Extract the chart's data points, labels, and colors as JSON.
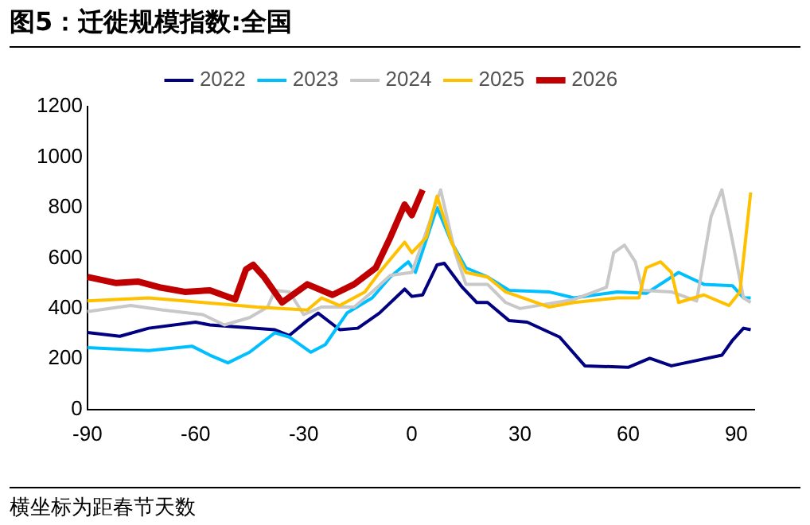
{
  "chart_data": {
    "type": "line",
    "title": "图5：迁徙规模指数:全国",
    "annotations": [
      "横坐标为距春节天数"
    ],
    "xlim": [
      -90,
      95
    ],
    "xticks": [
      -90,
      -60,
      -30,
      0,
      30,
      60,
      90
    ],
    "ylim": [
      0,
      1200
    ],
    "yticks": [
      0,
      200,
      400,
      600,
      800,
      1000,
      1200
    ],
    "grid": false,
    "legend": "top",
    "marker": "none",
    "line_style": "solid",
    "series": [
      {
        "name": "2022",
        "color": "#000080",
        "x": [
          -90,
          -81,
          -73,
          -60,
          -56,
          -38,
          -34,
          -29,
          -26,
          -20,
          -15,
          -9,
          -2,
          0,
          3,
          7,
          9,
          14,
          18,
          21,
          27,
          32,
          41,
          48,
          60,
          66,
          72,
          86,
          89,
          92,
          94
        ],
        "values": [
          305,
          290,
          322,
          346,
          335,
          316,
          293,
          352,
          382,
          316,
          322,
          382,
          477,
          448,
          454,
          573,
          579,
          484,
          424,
          424,
          352,
          346,
          287,
          173,
          167,
          203,
          173,
          215,
          275,
          322,
          316
        ]
      },
      {
        "name": "2023",
        "color": "#00bfff",
        "x": [
          -90,
          -73,
          -61,
          -56,
          -51,
          -45,
          -38,
          -34,
          -28,
          -24,
          -18,
          -11,
          -6,
          -1,
          1,
          7,
          11,
          15,
          21,
          27,
          38,
          45,
          57,
          65,
          74,
          81,
          89,
          92,
          94
        ],
        "values": [
          245,
          233,
          251,
          215,
          185,
          227,
          304,
          287,
          227,
          257,
          382,
          442,
          525,
          585,
          543,
          800,
          663,
          561,
          525,
          472,
          466,
          442,
          466,
          460,
          543,
          496,
          490,
          442,
          442
        ]
      },
      {
        "name": "2024",
        "color": "#c8c8c8",
        "x": [
          -90,
          -78,
          -69,
          -58,
          -52,
          -45,
          -40,
          -38,
          -34,
          -30,
          -25,
          -16,
          -11,
          -6,
          0,
          3,
          8,
          12,
          15,
          21,
          26,
          30,
          45,
          54,
          56,
          59,
          62,
          64,
          72,
          79,
          83,
          86,
          89,
          92,
          94
        ],
        "values": [
          388,
          412,
          394,
          376,
          335,
          364,
          406,
          472,
          466,
          376,
          406,
          406,
          466,
          531,
          543,
          663,
          870,
          621,
          496,
          496,
          424,
          400,
          436,
          484,
          621,
          651,
          585,
          472,
          466,
          430,
          764,
          870,
          663,
          442,
          424
        ]
      },
      {
        "name": "2025",
        "color": "#ffc000",
        "x": [
          -90,
          -73,
          -58,
          -43,
          -29,
          -25,
          -20,
          -13,
          -9,
          -2,
          0,
          4,
          7,
          11,
          15,
          21,
          26,
          38,
          45,
          57,
          63,
          65,
          69,
          72,
          74,
          81,
          88,
          91,
          94
        ],
        "values": [
          430,
          442,
          424,
          406,
          394,
          442,
          412,
          466,
          543,
          663,
          621,
          681,
          845,
          663,
          543,
          525,
          466,
          406,
          424,
          442,
          442,
          561,
          585,
          543,
          424,
          454,
          412,
          466,
          860
        ]
      },
      {
        "name": "2026",
        "color": "#c00000",
        "x": [
          -90,
          -82,
          -76,
          -70,
          -63,
          -56,
          -49,
          -46,
          -44,
          -41,
          -36,
          -29,
          -22,
          -16,
          -10,
          -6,
          -2,
          0,
          3
        ],
        "values": [
          525,
          501,
          507,
          484,
          466,
          472,
          436,
          555,
          573,
          525,
          424,
          496,
          454,
          496,
          561,
          681,
          812,
          770,
          870
        ]
      }
    ]
  }
}
